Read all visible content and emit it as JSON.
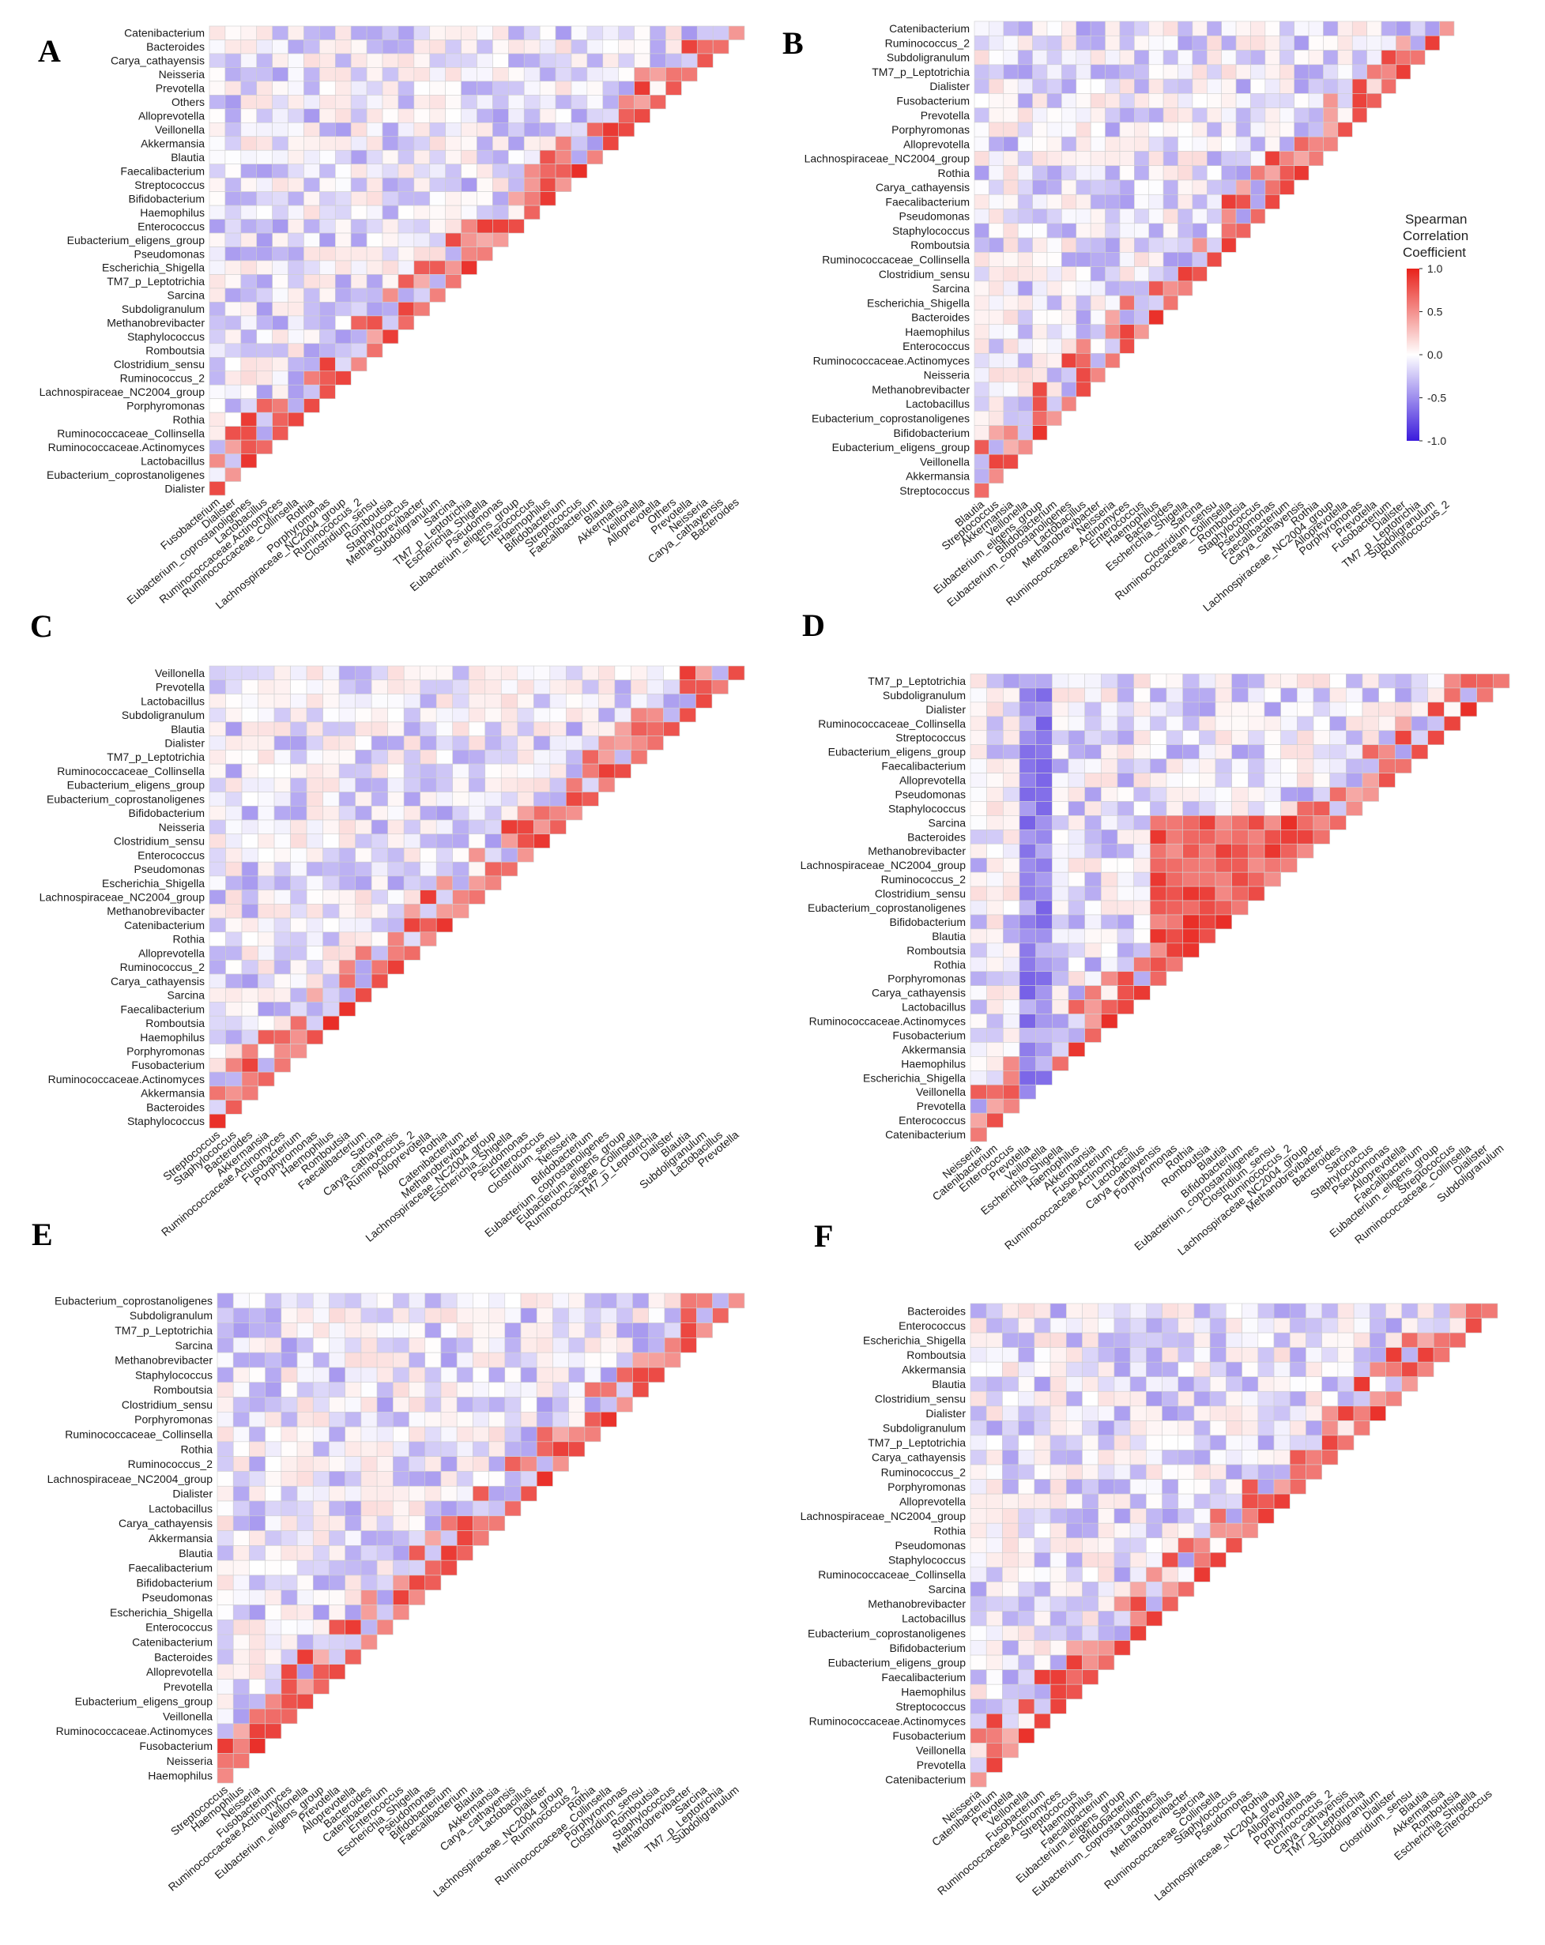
{
  "figure": {
    "legend": {
      "title_lines": [
        "Spearman",
        "Correlation",
        "Coefficient"
      ],
      "ticks": [
        "1.0",
        "0.5",
        "0.0",
        "-0.5",
        "-1.0"
      ],
      "tick_values": [
        1.0,
        0.5,
        0.0,
        -0.5,
        -1.0
      ],
      "min": -1.0,
      "max": 1.0,
      "colors": {
        "low": "#3b1bdc",
        "mid": "#ffffff",
        "high": "#e8221b"
      }
    }
  },
  "chart_data": [
    {
      "type": "heatmap",
      "panel": "A",
      "title": "",
      "value_label": "Spearman Correlation Coefficient",
      "row_labels": [
        "Catenibacterium",
        "Bacteroides",
        "Carya_cathayensis",
        "Neisseria",
        "Prevotella",
        "Others",
        "Alloprevotella",
        "Veillonella",
        "Akkermansia",
        "Blautia",
        "Faecalibacterium",
        "Streptococcus",
        "Bifidobacterium",
        "Haemophilus",
        "Enterococcus",
        "Eubacterium_eligens_group",
        "Pseudomonas",
        "Escherichia_Shigella",
        "TM7_p_Leptotrichia",
        "Sarcina",
        "Subdoligranulum",
        "Methanobrevibacter",
        "Staphylococcus",
        "Romboutsia",
        "Clostridium_sensu",
        "Ruminococcus_2",
        "Lachnospiraceae_NC2004_group",
        "Porphyromonas",
        "Rothia",
        "Ruminococcaceae_Collinsella",
        "Ruminococcaceae.Actinomyces",
        "Lactobacillus",
        "Eubacterium_coprostanoligenes",
        "Dialister"
      ],
      "col_labels": [
        "Fusobacterium",
        "Dialister",
        "Eubacterium_coprostanoligenes",
        "Lactobacillus",
        "Ruminococcaceae.Actinomyces",
        "Ruminococcaceae_Collinsella",
        "Rothia",
        "Porphyromonas",
        "Lachnospiraceae_NC2004_group",
        "Ruminococcus_2",
        "Clostridium_sensu",
        "Romboutsia",
        "Staphylococcus",
        "Methanobrevibacter",
        "Subdoligranulum",
        "Sarcina",
        "TM7_p_Leptotrichia",
        "Escherichia_Shigella",
        "Pseudomonas",
        "Eubacterium_eligens_group",
        "Enterococcus",
        "Haemophilus",
        "Bifidobacterium",
        "Streptococcus",
        "Faecalibacterium",
        "Blautia",
        "Akkermansia",
        "Veillonella",
        "Alloprevotella",
        "Others",
        "Prevotella",
        "Neisseria",
        "Carya_cathayensis",
        "Bacteroides"
      ],
      "value_range": [
        -1,
        1
      ],
      "notes": "lower-triangular correlation matrix; strong positive block near diagonal"
    },
    {
      "type": "heatmap",
      "panel": "B",
      "title": "",
      "value_label": "Spearman Correlation Coefficient",
      "row_labels": [
        "Catenibacterium",
        "Ruminococcus_2",
        "Subdoligranulum",
        "TM7_p_Leptotrichia",
        "Dialister",
        "Fusobacterium",
        "Prevotella",
        "Porphyromonas",
        "Alloprevotella",
        "Lachnospiraceae_NC2004_group",
        "Rothia",
        "Carya_cathayensis",
        "Faecalibacterium",
        "Pseudomonas",
        "Staphylococcus",
        "Romboutsia",
        "Ruminococcaceae_Collinsella",
        "Clostridium_sensu",
        "Sarcina",
        "Escherichia_Shigella",
        "Bacteroides",
        "Haemophilus",
        "Enterococcus",
        "Ruminococcaceae.Actinomyces",
        "Neisseria",
        "Methanobrevibacter",
        "Lactobacillus",
        "Eubacterium_coprostanoligenes",
        "Bifidobacterium",
        "Eubacterium_eligens_group",
        "Veillonella",
        "Akkermansia",
        "Streptococcus"
      ],
      "col_labels": [
        "Blautia",
        "Streptococcus",
        "Akkermansia",
        "Veillonella",
        "Eubacterium_eligens_group",
        "Bifidobacterium",
        "Eubacterium_coprostanoligenes",
        "Lactobacillus",
        "Methanobrevibacter",
        "Neisseria",
        "Ruminococcaceae.Actinomyces",
        "Enterococcus",
        "Haemophilus",
        "Bacteroides",
        "Escherichia_Shigella",
        "Sarcina",
        "Clostridium_sensu",
        "Ruminococcaceae_Collinsella",
        "Romboutsia",
        "Staphylococcus",
        "Pseudomonas",
        "Faecalibacterium",
        "Carya_cathayensis",
        "Rothia",
        "Lachnospiraceae_NC2004_group",
        "Alloprevotella",
        "Porphyromonas",
        "Prevotella",
        "Fusobacterium",
        "Dialister",
        "TM7_p_Leptotrichia",
        "Subdoligranulum",
        "Ruminococcus_2"
      ],
      "value_range": [
        -1,
        1
      ]
    },
    {
      "type": "heatmap",
      "panel": "C",
      "title": "",
      "value_label": "Spearman Correlation Coefficient",
      "row_labels": [
        "Veillonella",
        "Prevotella",
        "Lactobacillus",
        "Subdoligranulum",
        "Blautia",
        "Dialister",
        "TM7_p_Leptotrichia",
        "Ruminococcaceae_Collinsella",
        "Eubacterium_eligens_group",
        "Eubacterium_coprostanoligenes",
        "Bifidobacterium",
        "Neisseria",
        "Clostridium_sensu",
        "Enterococcus",
        "Pseudomonas",
        "Escherichia_Shigella",
        "Lachnospiraceae_NC2004_group",
        "Methanobrevibacter",
        "Catenibacterium",
        "Rothia",
        "Alloprevotella",
        "Ruminococcus_2",
        "Carya_cathayensis",
        "Sarcina",
        "Faecalibacterium",
        "Romboutsia",
        "Haemophilus",
        "Porphyromonas",
        "Fusobacterium",
        "Ruminococcaceae.Actinomyces",
        "Akkermansia",
        "Bacteroides",
        "Staphylococcus"
      ],
      "col_labels": [
        "Streptococcus",
        "Staphylococcus",
        "Bacteroides",
        "Akkermansia",
        "Ruminococcaceae.Actinomyces",
        "Fusobacterium",
        "Porphyromonas",
        "Haemophilus",
        "Romboutsia",
        "Faecalibacterium",
        "Sarcina",
        "Carya_cathayensis",
        "Ruminococcus_2",
        "Alloprevotella",
        "Rothia",
        "Catenibacterium",
        "Methanobrevibacter",
        "Lachnospiraceae_NC2004_group",
        "Escherichia_Shigella",
        "Pseudomonas",
        "Enterococcus",
        "Clostridium_sensu",
        "Neisseria",
        "Bifidobacterium",
        "Eubacterium_coprostanoligenes",
        "Eubacterium_eligens_group",
        "Ruminococcaceae_Collinsella",
        "TM7_p_Leptotrichia",
        "Dialister",
        "Blautia",
        "Subdoligranulum",
        "Lactobacillus",
        "Prevotella"
      ],
      "value_range": [
        -1,
        1
      ]
    },
    {
      "type": "heatmap",
      "panel": "D",
      "title": "",
      "value_label": "Spearman Correlation Coefficient",
      "row_labels": [
        "TM7_p_Leptotrichia",
        "Subdoligranulum",
        "Dialister",
        "Ruminococcaceae_Collinsella",
        "Streptococcus",
        "Eubacterium_eligens_group",
        "Faecalibacterium",
        "Alloprevotella",
        "Pseudomonas",
        "Staphylococcus",
        "Sarcina",
        "Bacteroides",
        "Methanobrevibacter",
        "Lachnospiraceae_NC2004_group",
        "Ruminococcus_2",
        "Clostridium_sensu",
        "Eubacterium_coprostanoligenes",
        "Bifidobacterium",
        "Blautia",
        "Romboutsia",
        "Rothia",
        "Porphyromonas",
        "Carya_cathayensis",
        "Lactobacillus",
        "Ruminococcaceae.Actinomyces",
        "Fusobacterium",
        "Akkermansia",
        "Haemophilus",
        "Escherichia_Shigella",
        "Veillonella",
        "Prevotella",
        "Enterococcus",
        "Catenibacterium"
      ],
      "col_labels": [
        "Neisseria",
        "Catenibacterium",
        "Enterococcus",
        "Prevotella",
        "Veillonella",
        "Escherichia_Shigella",
        "Haemophilus",
        "Akkermansia",
        "Fusobacterium",
        "Ruminococcaceae.Actinomyces",
        "Lactobacillus",
        "Carya_cathayensis",
        "Porphyromonas",
        "Rothia",
        "Romboutsia",
        "Blautia",
        "Bifidobacterium",
        "Eubacterium_coprostanoligenes",
        "Clostridium_sensu",
        "Ruminococcus_2",
        "Lachnospiraceae_NC2004_group",
        "Methanobrevibacter",
        "Bacteroides",
        "Sarcina",
        "Staphylococcus",
        "Pseudomonas",
        "Alloprevotella",
        "Faecalibacterium",
        "Eubacterium_eligens_group",
        "Streptococcus",
        "Ruminococcaceae_Collinsella",
        "Dialister",
        "Subdoligranulum"
      ],
      "value_range": [
        -1,
        1
      ]
    },
    {
      "type": "heatmap",
      "panel": "E",
      "title": "",
      "value_label": "Spearman Correlation Coefficient",
      "row_labels": [
        "Eubacterium_coprostanoligenes",
        "Subdoligranulum",
        "TM7_p_Leptotrichia",
        "Sarcina",
        "Methanobrevibacter",
        "Staphylococcus",
        "Romboutsia",
        "Clostridium_sensu",
        "Porphyromonas",
        "Ruminococcaceae_Collinsella",
        "Rothia",
        "Ruminococcus_2",
        "Lachnospiraceae_NC2004_group",
        "Dialister",
        "Lactobacillus",
        "Carya_cathayensis",
        "Akkermansia",
        "Blautia",
        "Faecalibacterium",
        "Bifidobacterium",
        "Pseudomonas",
        "Escherichia_Shigella",
        "Enterococcus",
        "Catenibacterium",
        "Bacteroides",
        "Alloprevotella",
        "Prevotella",
        "Eubacterium_eligens_group",
        "Veillonella",
        "Ruminococcaceae.Actinomyces",
        "Fusobacterium",
        "Neisseria",
        "Haemophilus"
      ],
      "col_labels": [
        "Streptococcus",
        "Haemophilus",
        "Neisseria",
        "Fusobacterium",
        "Ruminococcaceae.Actinomyces",
        "Veillonella",
        "Eubacterium_eligens_group",
        "Prevotella",
        "Alloprevotella",
        "Bacteroides",
        "Catenibacterium",
        "Enterococcus",
        "Escherichia_Shigella",
        "Pseudomonas",
        "Bifidobacterium",
        "Faecalibacterium",
        "Blautia",
        "Akkermansia",
        "Carya_cathayensis",
        "Lactobacillus",
        "Dialister",
        "Lachnospiraceae_NC2004_group",
        "Ruminococcus_2",
        "Rothia",
        "Ruminococcaceae_Collinsella",
        "Porphyromonas",
        "Clostridium_sensu",
        "Romboutsia",
        "Staphylococcus",
        "Methanobrevibacter",
        "Sarcina",
        "TM7_p_Leptotrichia",
        "Subdoligranulum"
      ],
      "value_range": [
        -1,
        1
      ]
    },
    {
      "type": "heatmap",
      "panel": "F",
      "title": "",
      "value_label": "Spearman Correlation Coefficient",
      "row_labels": [
        "Bacteroides",
        "Enterococcus",
        "Escherichia_Shigella",
        "Romboutsia",
        "Akkermansia",
        "Blautia",
        "Clostridium_sensu",
        "Dialister",
        "Subdoligranulum",
        "TM7_p_Leptotrichia",
        "Carya_cathayensis",
        "Ruminococcus_2",
        "Porphyromonas",
        "Alloprevotella",
        "Lachnospiraceae_NC2004_group",
        "Rothia",
        "Pseudomonas",
        "Staphylococcus",
        "Ruminococcaceae_Collinsella",
        "Sarcina",
        "Methanobrevibacter",
        "Lactobacillus",
        "Eubacterium_coprostanoligenes",
        "Bifidobacterium",
        "Eubacterium_eligens_group",
        "Faecalibacterium",
        "Haemophilus",
        "Streptococcus",
        "Ruminococcaceae.Actinomyces",
        "Fusobacterium",
        "Veillonella",
        "Prevotella",
        "Catenibacterium"
      ],
      "col_labels": [
        "Neisseria",
        "Catenibacterium",
        "Prevotella",
        "Veillonella",
        "Fusobacterium",
        "Ruminococcaceae.Actinomyces",
        "Streptococcus",
        "Haemophilus",
        "Faecalibacterium",
        "Eubacterium_eligens_group",
        "Bifidobacterium",
        "Eubacterium_coprostanoligenes",
        "Lactobacillus",
        "Methanobrevibacter",
        "Sarcina",
        "Ruminococcaceae_Collinsella",
        "Staphylococcus",
        "Pseudomonas",
        "Rothia",
        "Lachnospiraceae_NC2004_group",
        "Alloprevotella",
        "Porphyromonas",
        "Ruminococcus_2",
        "Carya_cathayensis",
        "TM7_p_Leptotrichia",
        "Subdoligranulum",
        "Dialister",
        "Clostridium_sensu",
        "Blautia",
        "Akkermansia",
        "Romboutsia",
        "Escherichia_Shigella",
        "Enterococcus"
      ],
      "value_range": [
        -1,
        1
      ]
    }
  ]
}
